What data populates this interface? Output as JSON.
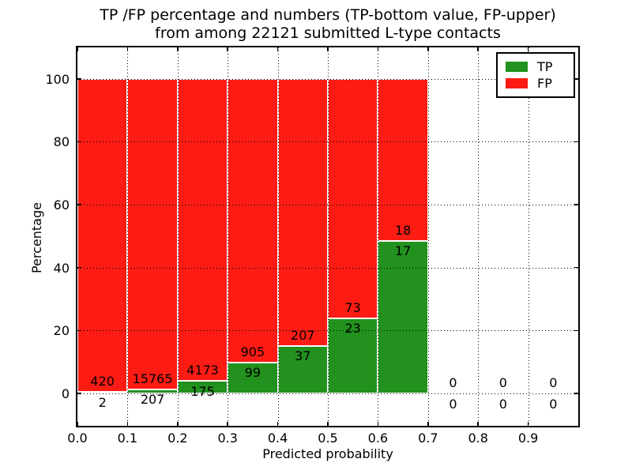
{
  "chart_data": {
    "type": "bar",
    "variant": "stacked-percentage",
    "title": "TP /FP percentage and numbers (TP-bottom value, FP-upper) from among 22121 submitted L-type contacts",
    "title_lines": {
      "line1": "TP /FP percentage and numbers (TP-bottom value, FP-upper)",
      "line2": "from among 22121 submitted L-type contacts"
    },
    "xlabel": "Predicted probability",
    "ylabel": "Percentage",
    "total_contacts": 22121,
    "xlim": [
      0.0,
      1.0
    ],
    "ylim": [
      -10.3,
      110
    ],
    "grid": "dotted-black-over-bars",
    "x_ticks": [
      "0.0",
      "0.1",
      "0.2",
      "0.3",
      "0.4",
      "0.5",
      "0.6",
      "0.7",
      "0.8",
      "0.9"
    ],
    "y_ticks": [
      "0",
      "20",
      "40",
      "60",
      "80",
      "100"
    ],
    "y_tick_values": [
      0,
      20,
      40,
      60,
      80,
      100
    ],
    "bin_width": 0.1,
    "bins": [
      {
        "x_start": 0.0,
        "tp": 2,
        "fp": 420
      },
      {
        "x_start": 0.1,
        "tp": 207,
        "fp": 15765
      },
      {
        "x_start": 0.2,
        "tp": 175,
        "fp": 4173
      },
      {
        "x_start": 0.3,
        "tp": 99,
        "fp": 905
      },
      {
        "x_start": 0.4,
        "tp": 37,
        "fp": 207
      },
      {
        "x_start": 0.5,
        "tp": 23,
        "fp": 73
      },
      {
        "x_start": 0.6,
        "tp": 17,
        "fp": 18
      },
      {
        "x_start": 0.7,
        "tp": 0,
        "fp": 0
      },
      {
        "x_start": 0.8,
        "tp": 0,
        "fp": 0
      },
      {
        "x_start": 0.9,
        "tp": 0,
        "fp": 0
      }
    ],
    "legend": [
      {
        "label": "TP",
        "color": "#22911e"
      },
      {
        "label": "FP",
        "color": "#fc1c14"
      }
    ],
    "legend_position": "upper-right",
    "colors": {
      "tp": "#22911e",
      "fp": "#fc1c14",
      "bar_edge": "#ffffff",
      "grid": "#000000",
      "text": "#000000",
      "background": "#ffffff"
    }
  }
}
